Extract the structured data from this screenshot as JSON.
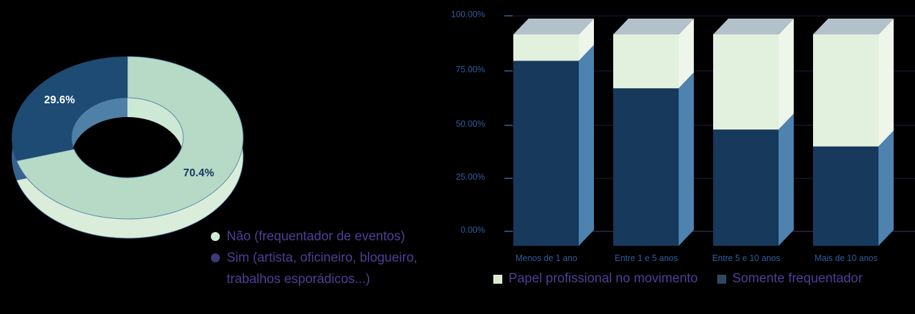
{
  "background_color": "#000000",
  "chart_data": [
    {
      "type": "pie",
      "subtype": "3d-donut",
      "labels": [
        "Não (frequentador de eventos)",
        "Sim (artista, oficineiro, blogueiro, trabalhos esporádicos...)"
      ],
      "values": [
        70.4,
        29.6
      ],
      "value_labels": [
        "70.4%",
        "29.6%"
      ],
      "slice_colors": [
        "#b6dac5",
        "#1d4b73"
      ],
      "rim_colors": [
        "#d9edda",
        "#35638e"
      ],
      "inner_wall_colors": [
        "#cde8d4",
        "#4f81a8"
      ],
      "value_label_colors": [
        "#12355a",
        "#ffffff"
      ],
      "slice_outline_color": "rgba(60,110,160,0.8)",
      "start_angle": "top",
      "direction": "clockwise",
      "legend_position": "bottom-right",
      "legend_text_color": "#4b4096",
      "legend_items": [
        {
          "marker_color": "#cfe9d9",
          "lines": [
            "Não (frequentador de eventos)",
            ""
          ]
        },
        {
          "marker_color": "#3d3a78",
          "lines": [
            "Sim (artista, oficineiro, blogueiro,",
            "trabalhos esporádicos...)"
          ]
        }
      ]
    },
    {
      "type": "bar",
      "subtype": "3d-stacked-column-100percent",
      "categories": [
        "Menos de 1 ano",
        "Entre 1 e 5 anos",
        "Entre 5 e 10 anos",
        "Mais de 10 anos"
      ],
      "series": [
        {
          "name": "Somente frequentador",
          "values": [
            87.5,
            74.5,
            55.0,
            47.0
          ],
          "color_front": "#16395c",
          "color_side": "#4d83ae",
          "legend_marker_color": "#2e4a63",
          "stack_position": "bottom"
        },
        {
          "name": "Papel profissional no movimento",
          "values": [
            12.5,
            25.5,
            45.0,
            53.0
          ],
          "color_front": "#e2f0de",
          "color_side": "#eef5ea",
          "legend_marker_color": "#dcead2",
          "stack_position": "top"
        }
      ],
      "top_face_color": "#b2c1ca",
      "yticks": [
        "100.00%",
        "75.00%",
        "50.00%",
        "25.00%",
        "0.00%"
      ],
      "ylim": [
        0,
        100
      ],
      "grid": true,
      "axis_text_color": "#2d5f9e",
      "legend_position": "bottom",
      "legend_text_color": "#4b4096",
      "legend_order": [
        "Papel profissional no movimento",
        "Somente frequentador"
      ]
    }
  ]
}
